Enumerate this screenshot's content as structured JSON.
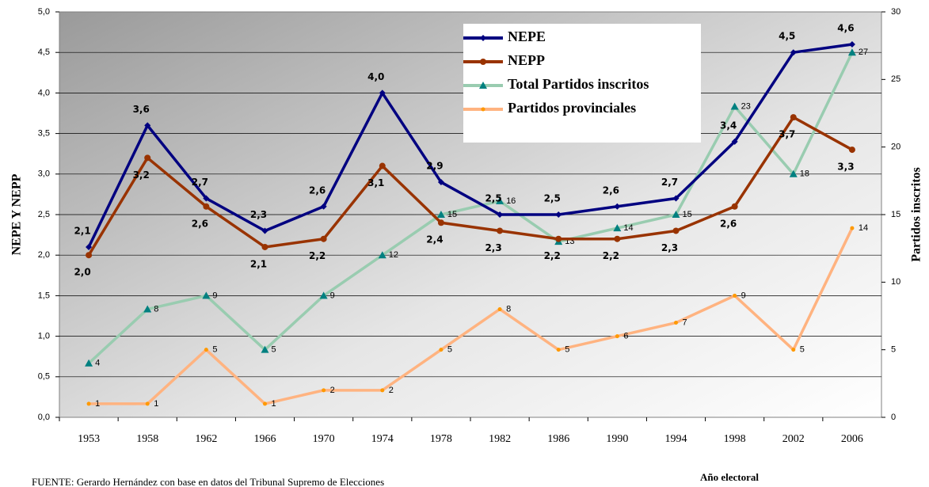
{
  "chart_data": {
    "type": "line",
    "categories": [
      "1953",
      "1958",
      "1962",
      "1966",
      "1970",
      "1974",
      "1978",
      "1982",
      "1986",
      "1990",
      "1994",
      "1998",
      "2002",
      "2006"
    ],
    "series": [
      {
        "name": "NEPE",
        "color": "#000080",
        "values": [
          2.1,
          3.6,
          2.7,
          2.3,
          2.6,
          4.0,
          2.9,
          2.5,
          2.5,
          2.6,
          2.7,
          3.4,
          4.5,
          4.6
        ],
        "value_labels": [
          "2,1",
          "3,6",
          "2,7",
          "2,3",
          "2,6",
          "4,0",
          "2,9",
          "2,5",
          "2,5",
          "2,6",
          "2,7",
          "3,4",
          "4,5",
          "4,6"
        ]
      },
      {
        "name": "NEPP",
        "color": "#993300",
        "values": [
          2.0,
          3.2,
          2.6,
          2.1,
          2.2,
          3.1,
          2.4,
          2.3,
          2.2,
          2.2,
          2.3,
          2.6,
          3.7,
          3.3
        ],
        "value_labels": [
          "2,0",
          "3,2",
          "2,6",
          "2,1",
          "2,2",
          "3,1",
          "2,4",
          "2,3",
          "2,2",
          "2,2",
          "2,3",
          "2,6",
          "3,7",
          "3,3"
        ]
      },
      {
        "name": "Total Partidos inscritos",
        "color": "#99ccb0",
        "marker_color": "#008080",
        "axis": "y2",
        "values": [
          4,
          8,
          9,
          5,
          9,
          12,
          15,
          16,
          13,
          14,
          15,
          23,
          18,
          27
        ]
      },
      {
        "name": "Partidos provinciales",
        "color": "#ffb380",
        "marker_color": "#ff9900",
        "axis": "y2",
        "values": [
          1,
          1,
          5,
          1,
          2,
          2,
          5,
          8,
          5,
          6,
          7,
          9,
          5,
          14
        ]
      }
    ],
    "ylabel": "NEPE Y NEPP",
    "y2label": "Partidos inscritos",
    "xlabel": "Año electoral",
    "ylim": [
      0,
      5
    ],
    "yticks": [
      {
        "value": 0,
        "label": "0,0"
      },
      {
        "value": 0.5,
        "label": "0,5"
      },
      {
        "value": 1,
        "label": "1,0"
      },
      {
        "value": 1.5,
        "label": "1,5"
      },
      {
        "value": 2,
        "label": "2,0"
      },
      {
        "value": 2.5,
        "label": "2,5"
      },
      {
        "value": 3,
        "label": "3,0"
      },
      {
        "value": 3.5,
        "label": "3,5"
      },
      {
        "value": 4,
        "label": "4,0"
      },
      {
        "value": 4.5,
        "label": "4,5"
      },
      {
        "value": 5,
        "label": "5,0"
      }
    ],
    "y2lim": [
      0,
      30
    ],
    "y2ticks": [
      0,
      5,
      10,
      15,
      20,
      25,
      30
    ],
    "grid": true,
    "legend": "top",
    "note": "FUENTE:  Gerardo Hernández con base en datos del Tribunal Supremo de Elecciones"
  }
}
